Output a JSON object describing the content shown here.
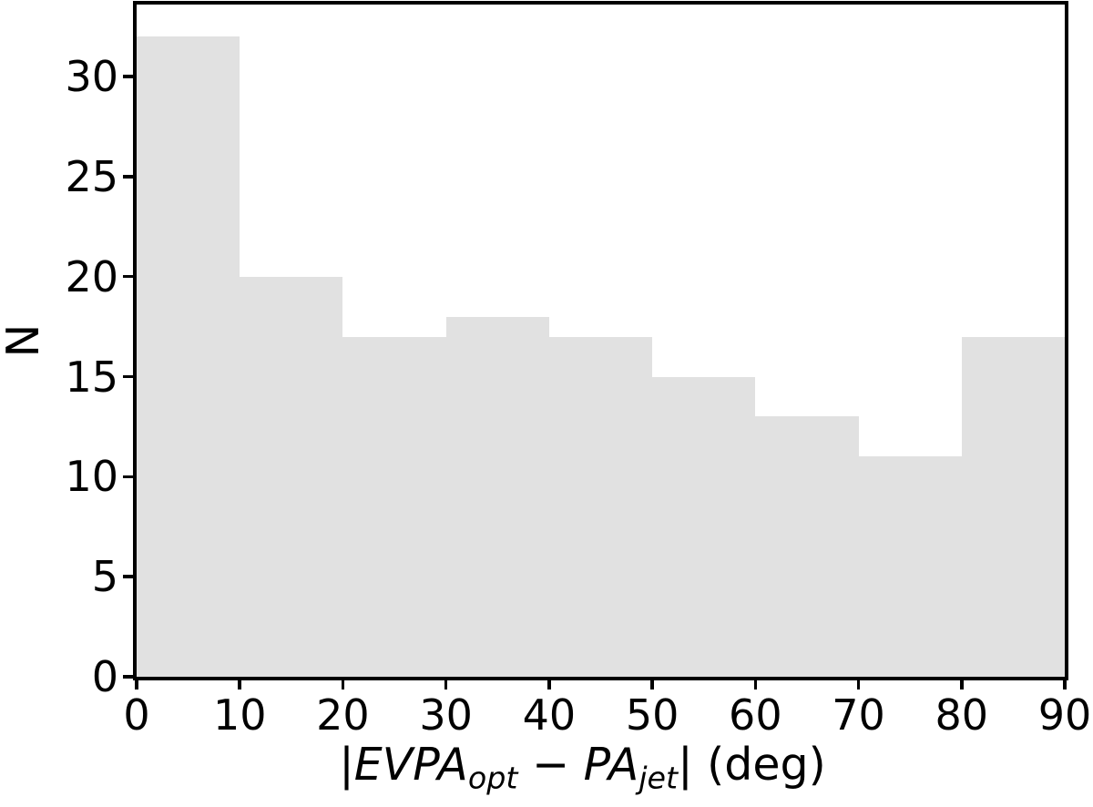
{
  "chart_data": {
    "type": "bar",
    "subtype": "histogram",
    "title": "",
    "xlabel_text": "|EVPA_opt − PA_jet| (deg)",
    "xlabel_segments": [
      {
        "text": "|",
        "kind": "normal"
      },
      {
        "text": "EVPA",
        "kind": "italic"
      },
      {
        "text": "opt",
        "kind": "subscript"
      },
      {
        "text": " − ",
        "kind": "normal"
      },
      {
        "text": "PA",
        "kind": "italic"
      },
      {
        "text": "jet",
        "kind": "subscript"
      },
      {
        "text": "|",
        "kind": "normal"
      },
      {
        "text": " (deg)",
        "kind": "normal"
      }
    ],
    "ylabel": "N",
    "bin_edges": [
      0,
      10,
      20,
      30,
      40,
      50,
      60,
      70,
      80,
      90
    ],
    "counts": [
      32,
      20,
      17,
      18,
      17,
      15,
      13,
      11,
      17
    ],
    "x_ticks": [
      0,
      10,
      20,
      30,
      40,
      50,
      60,
      70,
      80,
      90
    ],
    "y_ticks": [
      0,
      5,
      10,
      15,
      20,
      25,
      30
    ],
    "xlim": [
      0,
      90
    ],
    "ylim": [
      0,
      33.6
    ],
    "grid": false,
    "legend": null,
    "bar_color": "#e1e1e1",
    "axis_color": "#000000",
    "background_color": "#ffffff"
  }
}
